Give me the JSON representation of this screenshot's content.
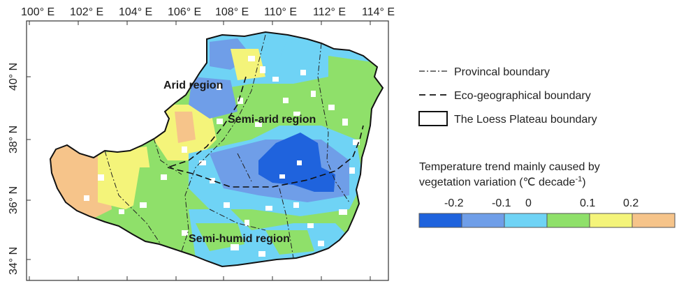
{
  "map": {
    "x_ticks": [
      "100° E",
      "102° E",
      "104° E",
      "106° E",
      "108° E",
      "110° E",
      "112° E",
      "114° E"
    ],
    "y_ticks": [
      "40° N",
      "38° N",
      "36° N",
      "34° N"
    ],
    "regions": {
      "arid": "Arid region",
      "semi_arid": "Semi-arid region",
      "semi_humid": "Semi-humid region"
    }
  },
  "legend": {
    "provincial": "Provincal boundary",
    "eco": "Eco-geographical boundary",
    "loess": "The Loess Plateau boundary"
  },
  "colorbar": {
    "title_line1": "Temperature trend mainly caused by",
    "title_line2": "vegetation variation (℃ decade",
    "title_sup": "-1",
    "title_close": ")",
    "tick_labels": [
      "-0.2",
      "-0.1",
      "0",
      "0.1",
      "0.2"
    ],
    "colors": [
      "#1f63dd",
      "#6f9ee8",
      "#6fd3f5",
      "#8fe06a",
      "#f4f47a",
      "#f6c48a"
    ]
  }
}
